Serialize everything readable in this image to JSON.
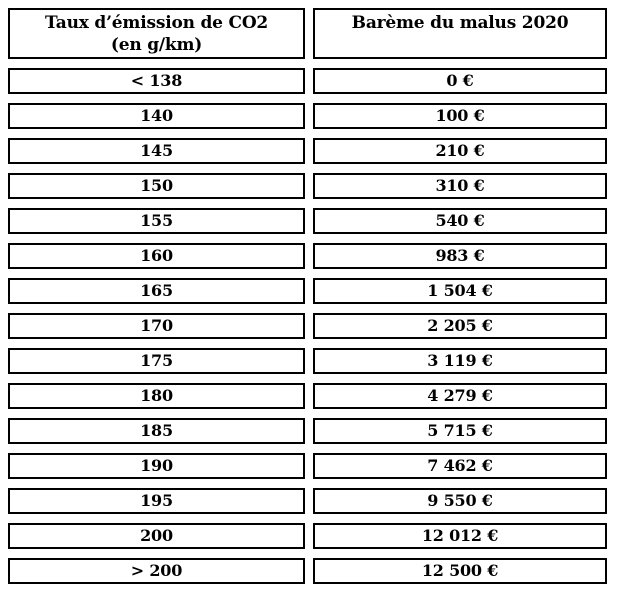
{
  "colors": {
    "border": "#000000",
    "text": "#000000",
    "background": "#ffffff"
  },
  "chart_data": {
    "type": "table",
    "columns": [
      {
        "full_header": "Taux d’émission de CO2 (en g/km)",
        "header_lines": [
          "Taux d’émission de CO2",
          "(en g/km)"
        ]
      },
      {
        "full_header": "Barème du malus 2020",
        "header_lines": [
          "Barème du malus 2020"
        ]
      }
    ],
    "rows": [
      {
        "taux_co2": "< 138",
        "malus": "0 €",
        "malus_eur": 0
      },
      {
        "taux_co2": "140",
        "malus": "100 €",
        "malus_eur": 100
      },
      {
        "taux_co2": "145",
        "malus": "210 €",
        "malus_eur": 210
      },
      {
        "taux_co2": "150",
        "malus": "310 €",
        "malus_eur": 310
      },
      {
        "taux_co2": "155",
        "malus": "540 €",
        "malus_eur": 540
      },
      {
        "taux_co2": "160",
        "malus": "983 €",
        "malus_eur": 983
      },
      {
        "taux_co2": "165",
        "malus": "1 504 €",
        "malus_eur": 1504
      },
      {
        "taux_co2": "170",
        "malus": "2 205 €",
        "malus_eur": 2205
      },
      {
        "taux_co2": "175",
        "malus": "3 119 €",
        "malus_eur": 3119
      },
      {
        "taux_co2": "180",
        "malus": "4 279 €",
        "malus_eur": 4279
      },
      {
        "taux_co2": "185",
        "malus": "5 715 €",
        "malus_eur": 5715
      },
      {
        "taux_co2": "190",
        "malus": "7 462 €",
        "malus_eur": 7462
      },
      {
        "taux_co2": "195",
        "malus": "9 550 €",
        "malus_eur": 9550
      },
      {
        "taux_co2": "200",
        "malus": "12 012 €",
        "malus_eur": 12012
      },
      {
        "taux_co2": "> 200",
        "malus": "12 500 €",
        "malus_eur": 12500
      }
    ]
  }
}
